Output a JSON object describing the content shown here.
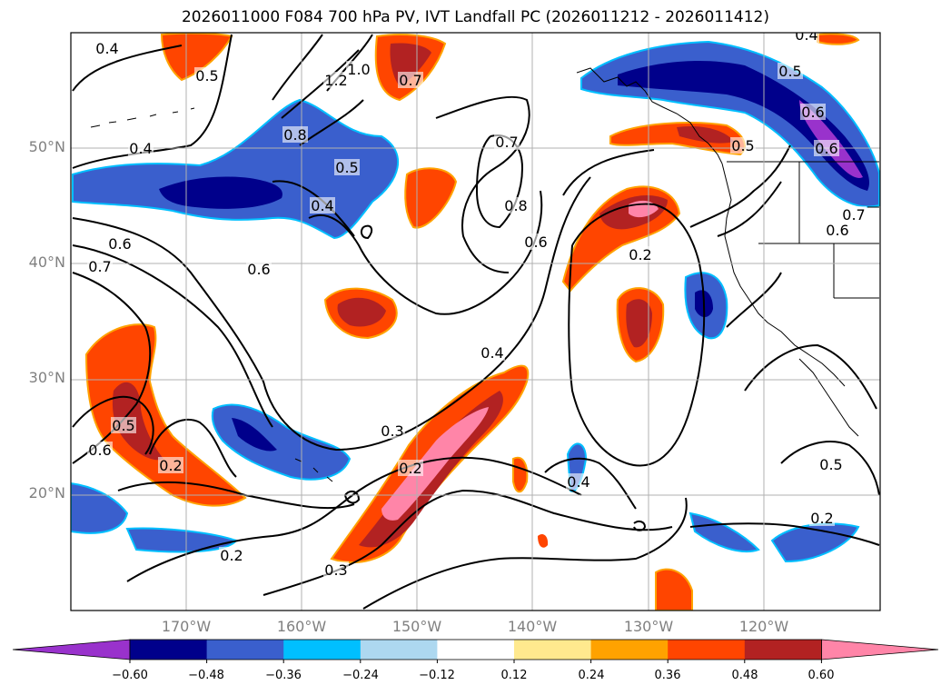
{
  "title": "2026011000 F084 700 hPa PV, IVT Landfall PC (2026011212 - 2026011412)",
  "lat_ticks": [
    "50°N",
    "40°N",
    "30°N",
    "20°N"
  ],
  "lon_ticks": [
    "170°W",
    "160°W",
    "150°W",
    "140°W",
    "130°W",
    "120°W"
  ],
  "contour_labels": [
    "0.4",
    "0.5",
    "1.2",
    "1.0",
    "0.7",
    "0.8",
    "0.4",
    "0.5",
    "0.4",
    "0.7",
    "0.8",
    "0.6",
    "0.6",
    "0.7",
    "0.6",
    "0.2",
    "0.4",
    "0.3",
    "0.2",
    "0.5",
    "0.6",
    "0.2",
    "0.2",
    "0.3",
    "0.4",
    "0.2",
    "0.5",
    "0.5",
    "0.6",
    "0.6",
    "0.7",
    "0.6",
    "0.4",
    "0.5"
  ],
  "colorbar": {
    "colors": [
      "#9932cc",
      "#00008b",
      "#3a5fcd",
      "#00bfff",
      "#add8f0",
      "#ffffff",
      "#ffe98e",
      "#ffa200",
      "#ff4500",
      "#b22222",
      "#ff85a8"
    ],
    "labels": [
      "−0.60",
      "−0.48",
      "−0.36",
      "−0.24",
      "−0.12",
      "0.12",
      "0.24",
      "0.36",
      "0.48",
      "0.60"
    ]
  }
}
